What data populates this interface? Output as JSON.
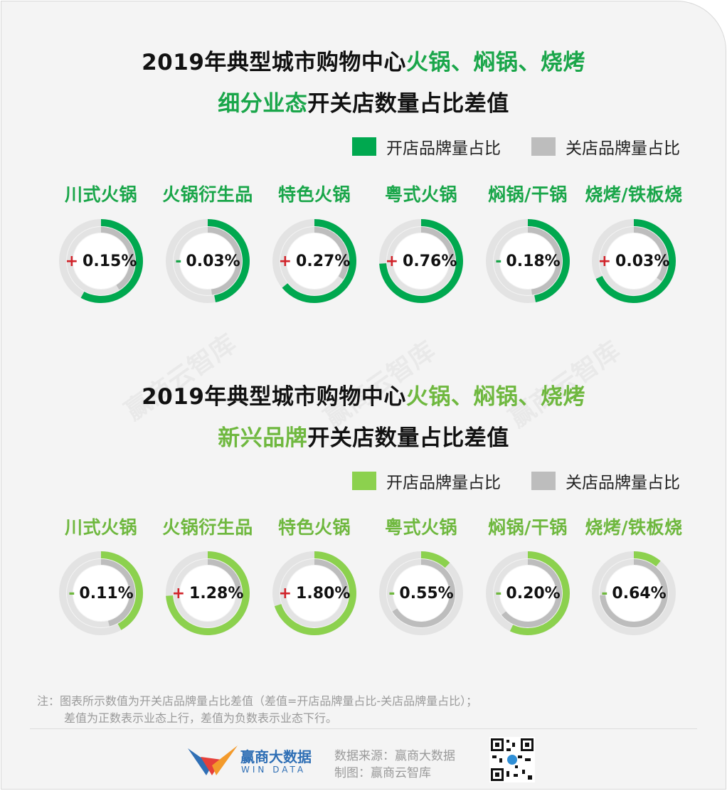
{
  "watermark": "赢商云智库",
  "sections": [
    {
      "title_line1_prefix": "2019年典型城市购物中心",
      "title_line1_highlight": "火锅、焖锅、烧烤",
      "title_line2_highlight": "细分业态",
      "title_line2_suffix": "开关店数量占比差值",
      "legend_open": "开店品牌量占比",
      "legend_close": "关店品牌量占比",
      "open_color": "#00a84f",
      "close_color": "#bdbdbd"
    },
    {
      "title_line1_prefix": "2019年典型城市购物中心",
      "title_line1_highlight": "火锅、焖锅、烧烤",
      "title_line2_highlight": "新兴品牌",
      "title_line2_suffix": "开关店数量占比差值",
      "legend_open": "开店品牌量占比",
      "legend_close": "关店品牌量占比",
      "open_color": "#8cd14e",
      "close_color": "#bdbdbd"
    }
  ],
  "chart_data": [
    {
      "type": "donut",
      "title": "2019年典型城市购物中心火锅、焖锅、烧烤细分业态开关店数量占比差值",
      "categories": [
        "川式火锅",
        "火锅衍生品",
        "特色火锅",
        "粤式火锅",
        "焖锅/干锅",
        "烧烤/铁板烧"
      ],
      "diff_labels": [
        "0.15%",
        "0.03%",
        "0.27%",
        "0.76%",
        "0.18%",
        "0.03%"
      ],
      "diff_signs": [
        "+",
        "-",
        "+",
        "+",
        "-",
        "+"
      ],
      "series": [
        {
          "name": "开店品牌量占比",
          "values": [
            0.58,
            0.47,
            0.64,
            0.74,
            0.47,
            0.68
          ]
        },
        {
          "name": "关店品牌量占比",
          "values": [
            0.41,
            0.48,
            0.34,
            0.24,
            0.48,
            0.35
          ]
        }
      ]
    },
    {
      "type": "donut",
      "title": "2019年典型城市购物中心火锅、焖锅、烧烤新兴品牌开关店数量占比差值",
      "categories": [
        "川式火锅",
        "火锅衍生品",
        "特色火锅",
        "粤式火锅",
        "焖锅/干锅",
        "烧烤/铁板烧"
      ],
      "diff_labels": [
        "0.11%",
        "1.28%",
        "1.80%",
        "0.55%",
        "0.20%",
        "0.64%"
      ],
      "diff_signs": [
        "-",
        "+",
        "+",
        "-",
        "-",
        "-"
      ],
      "series": [
        {
          "name": "开店品牌量占比",
          "values": [
            0.42,
            0.74,
            0.7,
            0.12,
            0.57,
            0.11
          ]
        },
        {
          "name": "关店品牌量占比",
          "values": [
            0.46,
            0.25,
            0.26,
            0.66,
            0.64,
            0.74
          ]
        }
      ]
    }
  ],
  "note_line1": "注：图表所示数值为开关店品牌量占比差值（差值=开店品牌量占比-关店品牌量占比）；",
  "note_line2": "差值为正数表示业态上行，差值为负数表示业态下行。",
  "footer": {
    "brand_cn": "赢商大数据",
    "brand_en": "WIN DATA",
    "source": "数据来源：赢商大数据",
    "maker": "制图：赢商云智库"
  }
}
